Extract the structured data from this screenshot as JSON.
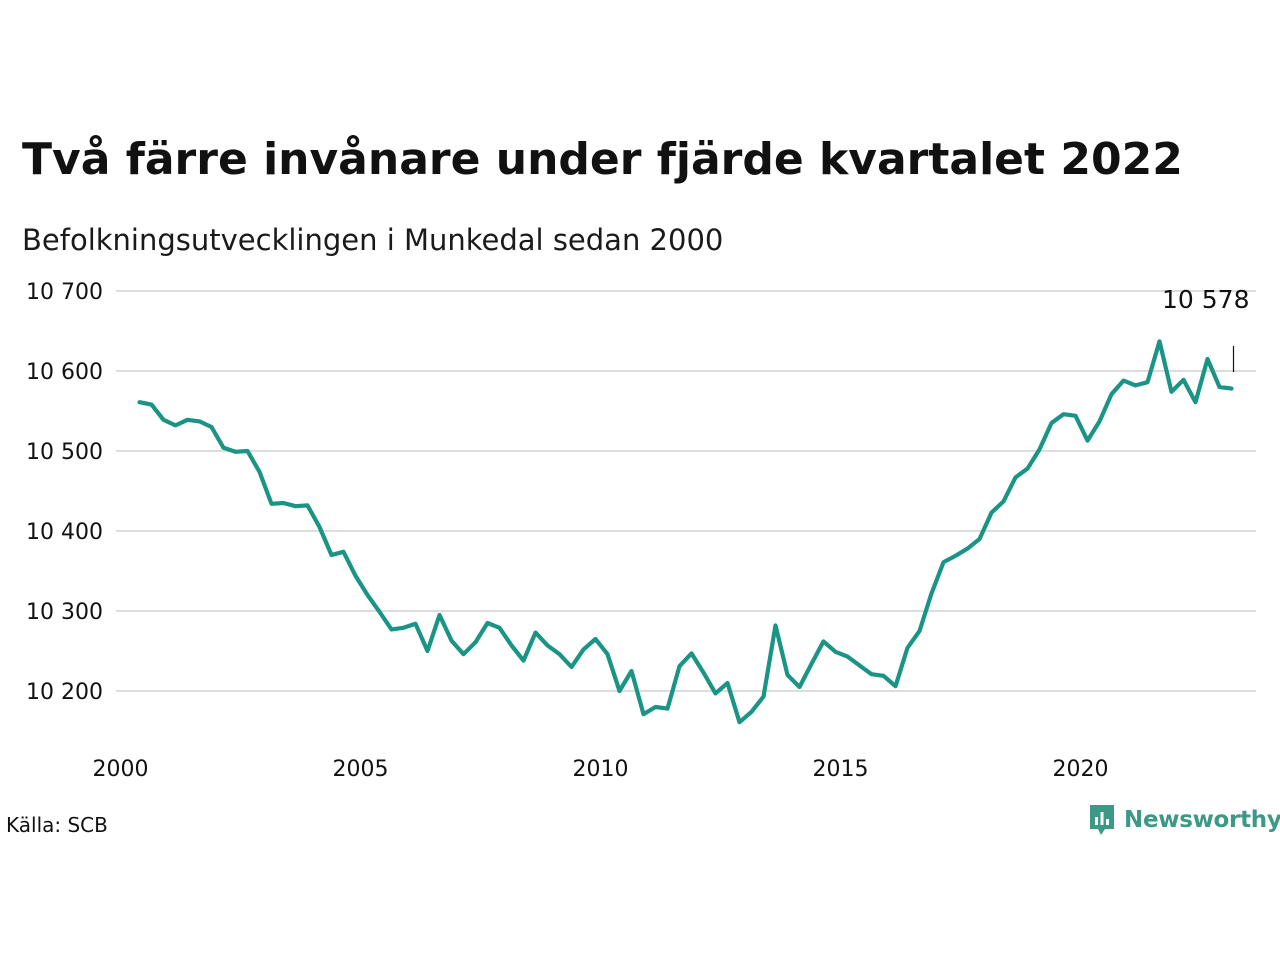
{
  "header": {
    "title": "Två färre invånare under fjärde kvartalet 2022",
    "subtitle": "Befolkningsutvecklingen i Munkedal sedan 2000"
  },
  "footer": {
    "source": "Källa: SCB",
    "brand_name": "Newsworthy",
    "brand_icon": "newsworthy-logo-icon"
  },
  "colors": {
    "line": "#1a9484",
    "grid": "#dddddd",
    "brand": "#3c9986"
  },
  "chart_data": {
    "type": "line",
    "ylim": [
      10150,
      10700
    ],
    "xlim": [
      2000,
      2023.5
    ],
    "y_ticks": [
      10200,
      10300,
      10400,
      10500,
      10600,
      10700
    ],
    "y_tick_labels": [
      "10 200",
      "10 300",
      "10 400",
      "10 500",
      "10 600",
      "10 700"
    ],
    "x_ticks": [
      2000,
      2005,
      2010,
      2015,
      2020
    ],
    "x_tick_labels": [
      "2000",
      "2005",
      "2010",
      "2015",
      "2020"
    ],
    "grid": "horizontal",
    "annotation": {
      "label": "10 578",
      "value": 10578
    },
    "x_start": 2000.25,
    "x_step": 0.25,
    "values": [
      10561,
      10558,
      10539,
      10532,
      10539,
      10537,
      10530,
      10504,
      10499,
      10500,
      10474,
      10434,
      10435,
      10431,
      10432,
      10405,
      10370,
      10374,
      10344,
      10320,
      10299,
      10277,
      10279,
      10284,
      10250,
      10295,
      10263,
      10246,
      10261,
      10285,
      10279,
      10257,
      10238,
      10273,
      10257,
      10246,
      10230,
      10252,
      10265,
      10246,
      10200,
      10225,
      10171,
      10180,
      10178,
      10231,
      10247,
      10223,
      10197,
      10210,
      10161,
      10174,
      10193,
      10282,
      10220,
      10205,
      10234,
      10262,
      10249,
      10243,
      10232,
      10221,
      10219,
      10206,
      10254,
      10275,
      10322,
      10361,
      10369,
      10378,
      10390,
      10423,
      10437,
      10467,
      10478,
      10502,
      10535,
      10546,
      10544,
      10513,
      10537,
      10571,
      10588,
      10582,
      10586,
      10637,
      10574,
      10589,
      10561,
      10615,
      10580,
      10578
    ]
  }
}
